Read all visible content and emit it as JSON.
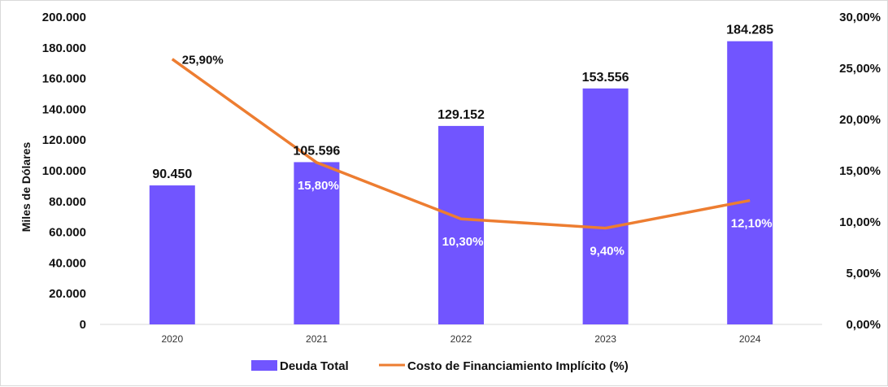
{
  "chart_data": {
    "type": "bar+line",
    "categories": [
      "2020",
      "2021",
      "2022",
      "2023",
      "2024"
    ],
    "series": [
      {
        "name": "Deuda Total",
        "type": "bar",
        "axis": "left",
        "color": "#7155ff",
        "values": [
          90450,
          105596,
          129152,
          153556,
          184285
        ],
        "labels": [
          "90.450",
          "105.596",
          "129.152",
          "153.556",
          "184.285"
        ]
      },
      {
        "name": "Costo de Financiamiento Implícito (%)",
        "type": "line",
        "axis": "right",
        "color": "#ed7d31",
        "values": [
          25.9,
          15.8,
          10.3,
          9.4,
          12.1
        ],
        "labels": [
          "25,90%",
          "15,80%",
          "10,30%",
          "9,40%",
          "12,10%"
        ],
        "label_colors": [
          "#111111",
          "#ffffff",
          "#ffffff",
          "#ffffff",
          "#ffffff"
        ]
      }
    ],
    "ylabel": "Miles de Dólares",
    "ylim": [
      0,
      200000
    ],
    "y_ticks": [
      "0",
      "20.000",
      "40.000",
      "60.000",
      "80.000",
      "100.000",
      "120.000",
      "140.000",
      "160.000",
      "180.000",
      "200.000"
    ],
    "y2lim": [
      0,
      30
    ],
    "y2_ticks": [
      "0,00%",
      "5,00%",
      "10,00%",
      "15,00%",
      "20,00%",
      "25,00%",
      "30,00%"
    ],
    "grid": false,
    "legend_position": "bottom"
  }
}
